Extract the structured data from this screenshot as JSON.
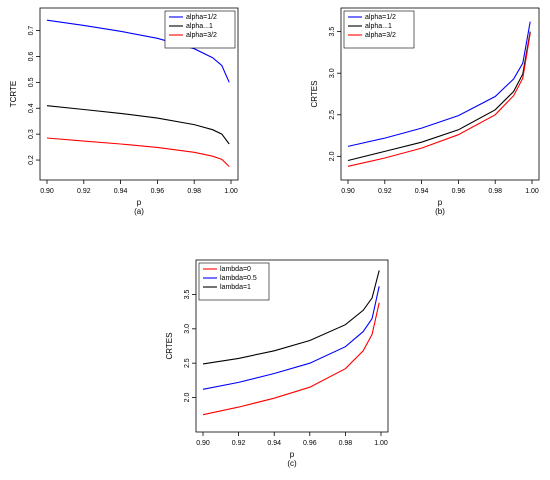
{
  "chart_data": [
    {
      "id": "a",
      "type": "line",
      "caption": "(a)",
      "xlabel": "p",
      "ylabel": "TCRTE",
      "xlim": [
        0.9,
        1.0
      ],
      "ylim": [
        0.15,
        0.76
      ],
      "xticks": [
        "0.90",
        "0.92",
        "0.94",
        "0.96",
        "0.98",
        "1.00"
      ],
      "yticks": [
        "0.2",
        "0.3",
        "0.4",
        "0.5",
        "0.6",
        "0.7"
      ],
      "legend_position": "top-right",
      "x": [
        0.9,
        0.92,
        0.94,
        0.96,
        0.98,
        0.99,
        0.995,
        0.999
      ],
      "series": [
        {
          "name": "alpha=1/2",
          "color": "#0000ff",
          "values": [
            0.74,
            0.72,
            0.697,
            0.67,
            0.63,
            0.595,
            0.565,
            0.5
          ]
        },
        {
          "name": "alpha...1",
          "color": "#000000",
          "values": [
            0.41,
            0.395,
            0.38,
            0.362,
            0.337,
            0.317,
            0.3,
            0.262
          ]
        },
        {
          "name": "alpha=3/2",
          "color": "#ff0000",
          "values": [
            0.285,
            0.273,
            0.262,
            0.249,
            0.23,
            0.215,
            0.203,
            0.175
          ]
        }
      ]
    },
    {
      "id": "b",
      "type": "line",
      "caption": "(b)",
      "xlabel": "p",
      "ylabel": "CRTES",
      "xlim": [
        0.9,
        1.0
      ],
      "ylim": [
        1.8,
        3.7
      ],
      "xticks": [
        "0.90",
        "0.92",
        "0.94",
        "0.96",
        "0.98",
        "1.00"
      ],
      "yticks": [
        "2.0",
        "2.5",
        "3.0",
        "3.5"
      ],
      "legend_position": "top-left",
      "x": [
        0.9,
        0.92,
        0.94,
        0.96,
        0.98,
        0.99,
        0.995,
        0.999
      ],
      "series": [
        {
          "name": "alpha=1/2",
          "color": "#0000ff",
          "values": [
            2.12,
            2.22,
            2.34,
            2.49,
            2.72,
            2.93,
            3.12,
            3.62
          ]
        },
        {
          "name": "alpha...1",
          "color": "#000000",
          "values": [
            1.95,
            2.06,
            2.17,
            2.32,
            2.56,
            2.78,
            2.99,
            3.5
          ]
        },
        {
          "name": "alpha=3/2",
          "color": "#ff0000",
          "values": [
            1.88,
            1.98,
            2.1,
            2.26,
            2.5,
            2.73,
            2.94,
            3.48
          ]
        }
      ]
    },
    {
      "id": "c",
      "type": "line",
      "caption": "(c)",
      "xlabel": "p",
      "ylabel": "CRTES",
      "xlim": [
        0.9,
        1.0
      ],
      "ylim": [
        1.6,
        3.9
      ],
      "xticks": [
        "0.90",
        "0.92",
        "0.94",
        "0.96",
        "0.98",
        "1.00"
      ],
      "yticks": [
        "2.0",
        "2.5",
        "3.0",
        "3.5"
      ],
      "legend_position": "top-left",
      "x": [
        0.9,
        0.92,
        0.94,
        0.96,
        0.98,
        0.99,
        0.995,
        0.999
      ],
      "series": [
        {
          "name": "lambda=0",
          "color": "#ff0000",
          "values": [
            1.75,
            1.86,
            1.99,
            2.15,
            2.42,
            2.68,
            2.92,
            3.38
          ]
        },
        {
          "name": "lambda=0.5",
          "color": "#0000ff",
          "values": [
            2.12,
            2.22,
            2.35,
            2.5,
            2.74,
            2.96,
            3.15,
            3.62
          ]
        },
        {
          "name": "lambda=1",
          "color": "#000000",
          "values": [
            2.49,
            2.57,
            2.68,
            2.83,
            3.06,
            3.27,
            3.45,
            3.85
          ]
        }
      ]
    }
  ]
}
